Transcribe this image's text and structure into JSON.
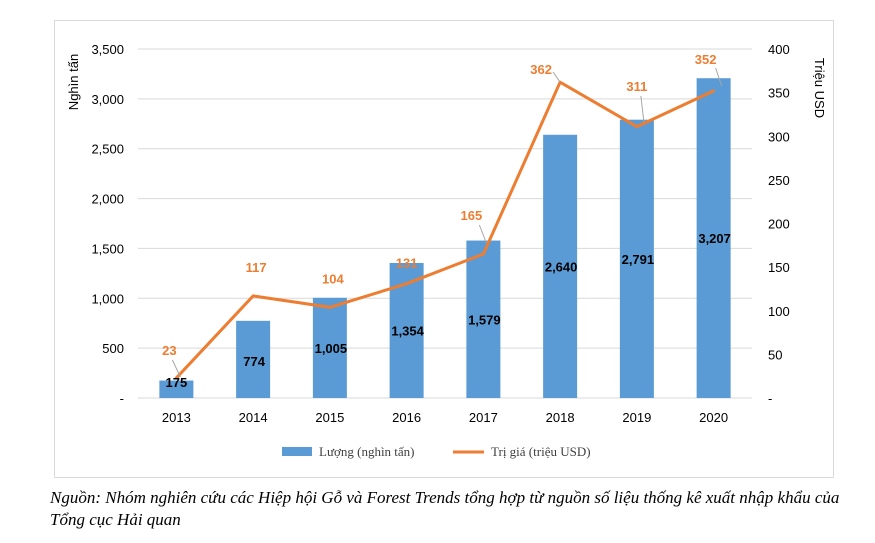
{
  "chart_data": {
    "type": "bar",
    "categories": [
      "2013",
      "2014",
      "2015",
      "2016",
      "2017",
      "2018",
      "2019",
      "2020"
    ],
    "series": [
      {
        "name": "Lượng (nghìn tấn)",
        "type": "bar",
        "axis": "left",
        "values": [
          175,
          774,
          1005,
          1354,
          1579,
          2640,
          2791,
          3207
        ],
        "labels": [
          "175",
          "774",
          "1,005",
          "1,354",
          "1,579",
          "2,640",
          "2,791",
          "3,207"
        ],
        "color": "#5b9bd5"
      },
      {
        "name": "Trị giá (triệu USD)",
        "type": "line",
        "axis": "right",
        "values": [
          23,
          117,
          104,
          131,
          165,
          362,
          311,
          352
        ],
        "labels": [
          "23",
          "117",
          "104",
          "131",
          "165",
          "362",
          "311",
          "352"
        ],
        "color": "#ed7d31"
      }
    ],
    "ylabel_left": "Nghìn tấn",
    "ylabel_right": "Triệu USD",
    "ylim_left": [
      0,
      3500
    ],
    "ylim_right": [
      0,
      400
    ],
    "yticks_left": [
      "-",
      "500",
      "1,000",
      "1,500",
      "2,000",
      "2,500",
      "3,000",
      "3,500"
    ],
    "yticks_right": [
      "-",
      "50",
      "100",
      "150",
      "200",
      "250",
      "300",
      "350",
      "400"
    ],
    "grid": true,
    "legend_position": "bottom"
  },
  "caption": "Nguồn: Nhóm nghiên cứu các Hiệp hội Gỗ và Forest Trends tổng hợp từ nguồn số liệu thống kê xuất nhập khẩu của Tổng cục Hải quan",
  "colors": {
    "bar": "#5b9bd5",
    "line": "#ed7d31",
    "grid": "#d9d9d9",
    "text": "#404040"
  }
}
